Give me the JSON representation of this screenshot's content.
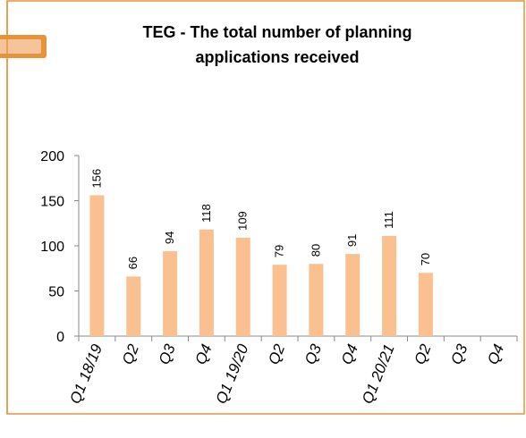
{
  "chart_data": {
    "type": "bar",
    "title": "TEG - The total number of planning applications received",
    "categories": [
      "Q1 18/19",
      "Q2",
      "Q3",
      "Q4",
      "Q1 19/20",
      "Q2",
      "Q3",
      "Q4",
      "Q1 20/21",
      "Q2",
      "Q3",
      "Q4"
    ],
    "values": [
      156,
      66,
      94,
      118,
      109,
      79,
      80,
      91,
      111,
      70,
      null,
      null
    ],
    "color": "#fac090",
    "ylim": [
      0,
      200
    ],
    "yticks": [
      0,
      50,
      100,
      150,
      200
    ],
    "grid": false
  }
}
